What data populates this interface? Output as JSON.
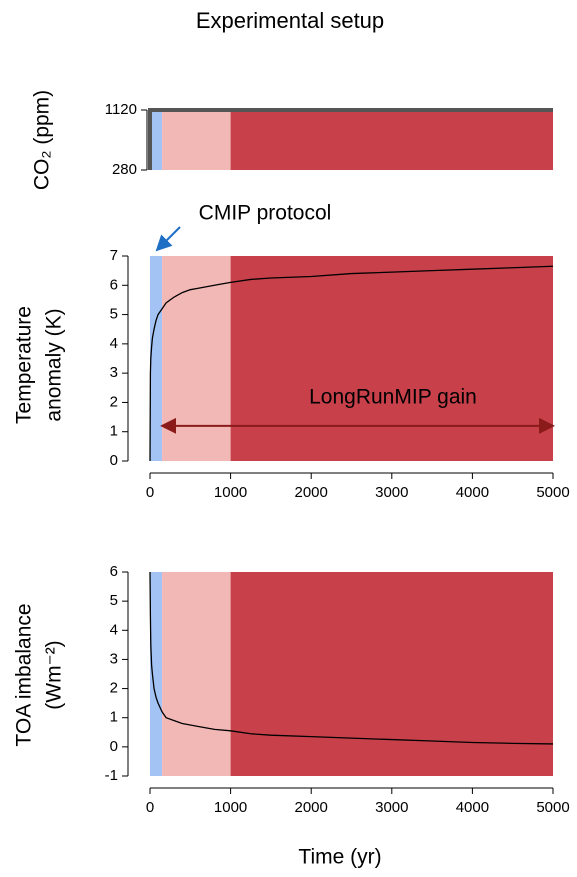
{
  "chart_data": [
    {
      "type": "step",
      "title": "Experimental setup",
      "y_label": [
        "CO₂ (ppm)"
      ],
      "xlim": [
        0,
        5000
      ],
      "ylim": [
        280,
        1120
      ],
      "yticks": [
        280,
        1120
      ],
      "phases": [
        {
          "start": 0,
          "end": 150,
          "color": "#a4c3f5"
        },
        {
          "start": 150,
          "end": 1000,
          "color": "#f2b8b5"
        },
        {
          "start": 1000,
          "end": 5000,
          "color": "#c8404a"
        }
      ],
      "series": [
        {
          "color": "#555555",
          "x": [
            0,
            0,
            5000
          ],
          "values": [
            280,
            1120,
            1120
          ]
        }
      ]
    },
    {
      "type": "line",
      "y_label": [
        "Temperature",
        "anomaly (K)"
      ],
      "xlim": [
        0,
        5000
      ],
      "xticks": [
        0,
        1000,
        2000,
        3000,
        4000,
        5000
      ],
      "ylim": [
        0,
        7
      ],
      "yticks": [
        0,
        1,
        2,
        3,
        4,
        5,
        6,
        7
      ],
      "phases": [
        {
          "start": 0,
          "end": 150,
          "color": "#a4c3f5"
        },
        {
          "start": 150,
          "end": 1000,
          "color": "#f2b8b5"
        },
        {
          "start": 1000,
          "end": 5000,
          "color": "#c8404a"
        }
      ],
      "annotations": [
        {
          "text": "CMIP protocol",
          "color": "#1f6fc5"
        },
        {
          "text": "LongRunMIP gain",
          "color": "#8b1a1a"
        }
      ],
      "series": [
        {
          "color": "#000000",
          "x": [
            0,
            5,
            10,
            20,
            30,
            50,
            75,
            100,
            150,
            200,
            300,
            400,
            500,
            600,
            800,
            1000,
            1250,
            1500,
            2000,
            2500,
            3000,
            3500,
            4000,
            4500,
            5000
          ],
          "values": [
            0,
            3.0,
            3.5,
            3.9,
            4.2,
            4.5,
            4.8,
            5.0,
            5.2,
            5.4,
            5.6,
            5.75,
            5.85,
            5.9,
            6.0,
            6.1,
            6.2,
            6.25,
            6.3,
            6.4,
            6.45,
            6.5,
            6.55,
            6.6,
            6.65
          ]
        }
      ]
    },
    {
      "type": "line",
      "y_label": [
        "TOA imbalance",
        "(Wm⁻²)"
      ],
      "x_label": "Time (yr)",
      "xlim": [
        0,
        5000
      ],
      "xticks": [
        0,
        1000,
        2000,
        3000,
        4000,
        5000
      ],
      "ylim": [
        -1,
        6
      ],
      "yticks": [
        -1,
        0,
        1,
        2,
        3,
        4,
        5,
        6
      ],
      "phases": [
        {
          "start": 0,
          "end": 150,
          "color": "#a4c3f5"
        },
        {
          "start": 150,
          "end": 1000,
          "color": "#f2b8b5"
        },
        {
          "start": 1000,
          "end": 5000,
          "color": "#c8404a"
        }
      ],
      "series": [
        {
          "color": "#000000",
          "x": [
            0,
            5,
            10,
            20,
            30,
            50,
            75,
            100,
            150,
            200,
            300,
            400,
            500,
            600,
            800,
            1000,
            1250,
            1500,
            2000,
            2500,
            3000,
            3500,
            4000,
            4500,
            5000
          ],
          "values": [
            6,
            4.5,
            3.5,
            2.8,
            2.5,
            2.0,
            1.7,
            1.5,
            1.2,
            1.0,
            0.9,
            0.8,
            0.75,
            0.7,
            0.6,
            0.55,
            0.45,
            0.4,
            0.35,
            0.3,
            0.25,
            0.2,
            0.15,
            0.12,
            0.1
          ]
        }
      ]
    }
  ]
}
